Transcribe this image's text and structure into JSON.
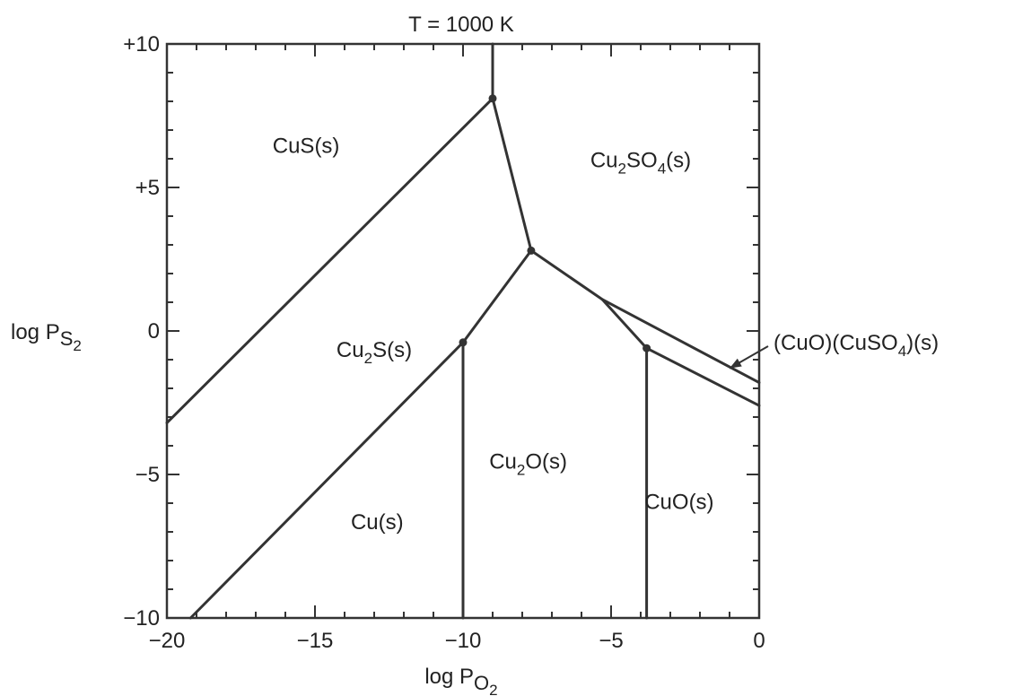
{
  "chart_data": {
    "type": "phase-diagram",
    "title": "T = 1000 K",
    "xlabel": {
      "main": "log P",
      "sub": "O",
      "subsub": "2"
    },
    "ylabel": {
      "main": "log P",
      "sub": "S",
      "subsub": "2"
    },
    "xlim": [
      -20,
      0
    ],
    "ylim": [
      -10,
      10
    ],
    "x_ticks": [
      {
        "value": -20,
        "label": "−20"
      },
      {
        "value": -15,
        "label": "−15"
      },
      {
        "value": -10,
        "label": "−10"
      },
      {
        "value": -5,
        "label": "−5"
      },
      {
        "value": 0,
        "label": "0"
      }
    ],
    "y_ticks": [
      {
        "value": 10,
        "label": "+10"
      },
      {
        "value": 5,
        "label": "+5"
      },
      {
        "value": 0,
        "label": "0"
      },
      {
        "value": -5,
        "label": "−5"
      },
      {
        "value": -10,
        "label": "−10"
      }
    ],
    "minor_tick_step": 1,
    "boundaries": [
      {
        "name": "cus-cu2s",
        "points": [
          [
            -20,
            -3.2
          ],
          [
            -9.0,
            8.1
          ]
        ]
      },
      {
        "name": "cus-cu2so4",
        "points": [
          [
            -9.0,
            8.1
          ],
          [
            -9.0,
            10
          ]
        ]
      },
      {
        "name": "cu2s-cu2so4",
        "points": [
          [
            -9.0,
            8.1
          ],
          [
            -7.7,
            2.8
          ]
        ]
      },
      {
        "name": "cu-cu2s",
        "points": [
          [
            -19.2,
            -10
          ],
          [
            -10.0,
            -0.4
          ],
          [
            -7.7,
            2.8
          ]
        ]
      },
      {
        "name": "cu-cu2o",
        "points": [
          [
            -10.0,
            -0.4
          ],
          [
            -10.0,
            -10
          ]
        ]
      },
      {
        "name": "cu2o-cu2s",
        "points": [
          [
            -7.7,
            2.8
          ],
          [
            -5.3,
            1.1
          ],
          [
            -3.8,
            -0.6
          ]
        ]
      },
      {
        "name": "cu2o-cuo",
        "points": [
          [
            -3.8,
            -0.6
          ],
          [
            -3.8,
            -10
          ]
        ]
      },
      {
        "name": "cuo-cuocuso4",
        "points": [
          [
            -3.8,
            -0.6
          ],
          [
            0,
            -2.6
          ]
        ]
      },
      {
        "name": "cuocuso4-cu2so4",
        "points": [
          [
            -5.3,
            1.1
          ],
          [
            0,
            -1.8
          ]
        ]
      }
    ],
    "triple_points": [
      [
        -9.0,
        8.1
      ],
      [
        -7.7,
        2.8
      ],
      [
        -10.0,
        -0.4
      ],
      [
        -3.8,
        -0.6
      ]
    ],
    "regions": [
      {
        "name": "region-cus",
        "parts": [
          {
            "t": "CuS(s)"
          }
        ],
        "x": -15.3,
        "y": 6.2
      },
      {
        "name": "region-cu2so4",
        "parts": [
          {
            "t": "Cu"
          },
          {
            "t": "2",
            "sub": true
          },
          {
            "t": "SO"
          },
          {
            "t": "4",
            "sub": true
          },
          {
            "t": "(s)"
          }
        ],
        "x": -4.0,
        "y": 5.7
      },
      {
        "name": "region-cu2s",
        "parts": [
          {
            "t": "Cu"
          },
          {
            "t": "2",
            "sub": true
          },
          {
            "t": "S(s)"
          }
        ],
        "x": -13.0,
        "y": -0.9
      },
      {
        "name": "region-cu2o",
        "parts": [
          {
            "t": "Cu"
          },
          {
            "t": "2",
            "sub": true
          },
          {
            "t": "O(s)"
          }
        ],
        "x": -7.8,
        "y": -4.8
      },
      {
        "name": "region-cu",
        "parts": [
          {
            "t": "Cu(s)"
          }
        ],
        "x": -12.9,
        "y": -6.9
      },
      {
        "name": "region-cuo",
        "parts": [
          {
            "t": "CuO(s)"
          }
        ],
        "x": -2.7,
        "y": -6.2
      }
    ],
    "callout": {
      "parts": [
        {
          "t": "(CuO)(CuSO"
        },
        {
          "t": "4",
          "sub": true
        },
        {
          "t": ")(s)"
        }
      ],
      "arrow_to": [
        -1.0,
        -1.3
      ]
    }
  }
}
